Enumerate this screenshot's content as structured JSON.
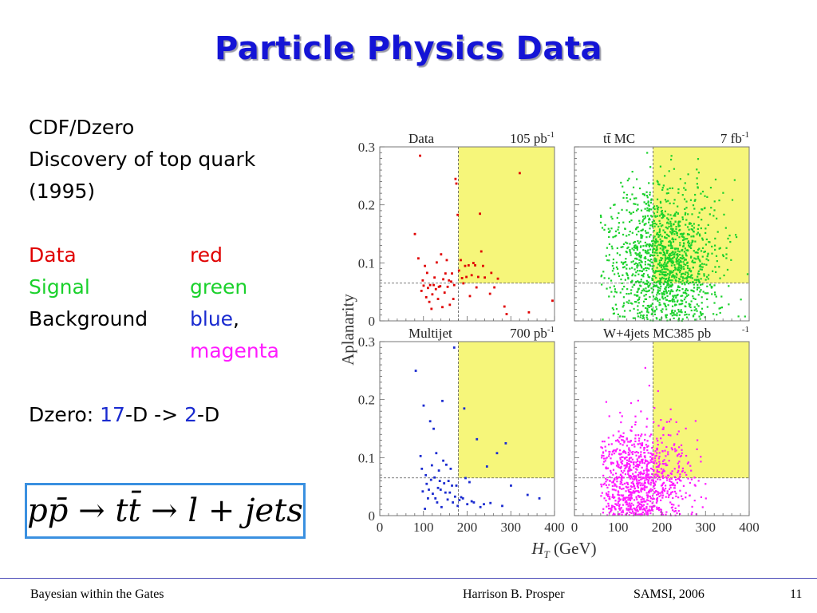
{
  "slide": {
    "title": "Particle Physics Data",
    "lines": [
      "CDF/Dzero",
      "Discovery of top quark",
      "(1995)"
    ],
    "legend": {
      "data_label": "Data",
      "data_color_word": "red",
      "signal_label": "Signal",
      "signal_color_word": "green",
      "background_label": "Background",
      "background_color_word1": "blue",
      "comma": ",",
      "background_color_word2": "magenta"
    },
    "dzero": {
      "prefix": "Dzero: ",
      "n1": "17",
      "mid": "-D -> ",
      "n2": "2",
      "suffix": "-D"
    },
    "formula": "pp̄ → tt̄ → l + jets"
  },
  "footer": {
    "left": "Bayesian within the Gates",
    "author": "Harrison B. Prosper",
    "venue": "SAMSI, 2006",
    "page": "11"
  },
  "colors": {
    "title": "#1414d6",
    "data": "#e00000",
    "signal": "#1bd12c",
    "multijet": "#1a2bd0",
    "wjets": "#ff1aff",
    "box_border": "#3a90e0",
    "cut_region": "#f6f67a"
  },
  "chart_data": {
    "type": "scatter",
    "xlabel": "H_T (GeV)",
    "ylabel": "Aplanarity",
    "xlim": [
      0,
      400
    ],
    "ylim": [
      0,
      0.3
    ],
    "xticks": [
      "0",
      "100",
      "200",
      "300",
      "400"
    ],
    "yticks": [
      "0",
      "0.1",
      "0.2",
      "0.3"
    ],
    "cuts": {
      "ht_min": 180,
      "aplanarity_min": 0.065
    },
    "panels": [
      {
        "label": "Data",
        "lumi": "105 pb",
        "lumi_sup": "-1",
        "color": "#e00000",
        "dense": false,
        "points": [
          [
            92,
            0.285
          ],
          [
            80,
            0.15
          ],
          [
            88,
            0.108
          ],
          [
            95,
            0.052
          ],
          [
            98,
            0.07
          ],
          [
            100,
            0.061
          ],
          [
            103,
            0.095
          ],
          [
            106,
            0.041
          ],
          [
            108,
            0.083
          ],
          [
            110,
            0.057
          ],
          [
            113,
            0.033
          ],
          [
            115,
            0.062
          ],
          [
            118,
            0.021
          ],
          [
            120,
            0.046
          ],
          [
            123,
            0.062
          ],
          [
            125,
            0.075
          ],
          [
            128,
            0.055
          ],
          [
            130,
            0.101
          ],
          [
            133,
            0.038
          ],
          [
            135,
            0.059
          ],
          [
            138,
            0.06
          ],
          [
            140,
            0.115
          ],
          [
            143,
            0.024
          ],
          [
            145,
            0.072
          ],
          [
            148,
            0.049
          ],
          [
            150,
            0.082
          ],
          [
            153,
            0.105
          ],
          [
            155,
            0.059
          ],
          [
            158,
            0.07
          ],
          [
            160,
            0.028
          ],
          [
            163,
            0.068
          ],
          [
            165,
            0.082
          ],
          [
            168,
            0.038
          ],
          [
            170,
            0.062
          ],
          [
            173,
            0.245
          ],
          [
            175,
            0.237
          ],
          [
            178,
            0.183
          ],
          [
            181,
            0.087
          ],
          [
            185,
            0.105
          ],
          [
            188,
            0.074
          ],
          [
            191,
            0.065
          ],
          [
            195,
            0.095
          ],
          [
            198,
            0.076
          ],
          [
            203,
            0.096
          ],
          [
            206,
            0.043
          ],
          [
            210,
            0.079
          ],
          [
            214,
            0.1
          ],
          [
            218,
            0.096
          ],
          [
            221,
            0.058
          ],
          [
            225,
            0.076
          ],
          [
            229,
            0.185
          ],
          [
            232,
            0.12
          ],
          [
            236,
            0.095
          ],
          [
            240,
            0.075
          ],
          [
            252,
            0.047
          ],
          [
            255,
            0.083
          ],
          [
            262,
            0.058
          ],
          [
            270,
            0.073
          ],
          [
            285,
            0.025
          ],
          [
            290,
            0.012
          ],
          [
            320,
            0.255
          ],
          [
            341,
            0.015
          ],
          [
            395,
            0.035
          ]
        ]
      },
      {
        "label": "tt̄ MC",
        "lumi": "7 fb",
        "lumi_sup": "-1",
        "color": "#1bd12c",
        "dense": true,
        "n_points": 1400,
        "seed": 17,
        "center": [
          205,
          0.105
        ],
        "spread": [
          62,
          0.065
        ]
      },
      {
        "label": "Multijet",
        "lumi": "700 pb",
        "lumi_sup": "-1",
        "color": "#1a2bd0",
        "dense": false,
        "points": [
          [
            82,
            0.25
          ],
          [
            93,
            0.103
          ],
          [
            96,
            0.081
          ],
          [
            98,
            0.042
          ],
          [
            100,
            0.19
          ],
          [
            103,
            0.012
          ],
          [
            105,
            0.07
          ],
          [
            107,
            0.055
          ],
          [
            110,
            0.03
          ],
          [
            112,
            0.045
          ],
          [
            115,
            0.163
          ],
          [
            117,
            0.062
          ],
          [
            119,
            0.087
          ],
          [
            121,
            0.038
          ],
          [
            123,
            0.15
          ],
          [
            125,
            0.066
          ],
          [
            127,
            0.03
          ],
          [
            129,
            0.108
          ],
          [
            131,
            0.023
          ],
          [
            133,
            0.048
          ],
          [
            135,
            0.078
          ],
          [
            137,
            0.06
          ],
          [
            139,
            0.045
          ],
          [
            141,
            0.015
          ],
          [
            143,
            0.198
          ],
          [
            145,
            0.095
          ],
          [
            147,
            0.056
          ],
          [
            150,
            0.04
          ],
          [
            152,
            0.088
          ],
          [
            155,
            0.028
          ],
          [
            157,
            0.06
          ],
          [
            160,
            0.04
          ],
          [
            162,
            0.081
          ],
          [
            165,
            0.052
          ],
          [
            167,
            0.023
          ],
          [
            170,
            0.29
          ],
          [
            172,
            0.033
          ],
          [
            175,
            0.052
          ],
          [
            178,
            0.017
          ],
          [
            182,
            0.027
          ],
          [
            186,
            0.032
          ],
          [
            190,
            0.03
          ],
          [
            193,
            0.185
          ],
          [
            196,
            0.065
          ],
          [
            200,
            0.02
          ],
          [
            205,
            0.058
          ],
          [
            210,
            0.025
          ],
          [
            215,
            0.023
          ],
          [
            222,
            0.132
          ],
          [
            230,
            0.015
          ],
          [
            238,
            0.02
          ],
          [
            245,
            0.085
          ],
          [
            253,
            0.022
          ],
          [
            268,
            0.108
          ],
          [
            280,
            0.017
          ],
          [
            288,
            0.125
          ],
          [
            300,
            0.052
          ],
          [
            338,
            0.036
          ],
          [
            365,
            0.03
          ]
        ]
      },
      {
        "label": "W+4jets MC385 pb",
        "lumi": "",
        "lumi_sup": "-1",
        "color": "#ff1aff",
        "dense": true,
        "n_points": 950,
        "seed": 29,
        "center": [
          145,
          0.06
        ],
        "spread": [
          55,
          0.048
        ]
      }
    ]
  }
}
